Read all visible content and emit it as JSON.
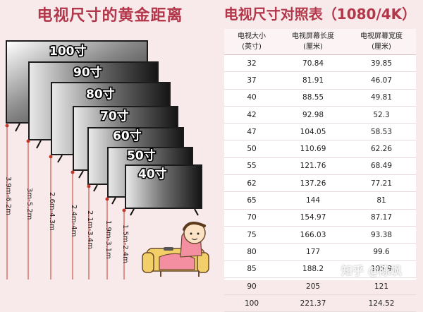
{
  "left_title": "电视尺寸的黄金距离",
  "right_title": "电视尺寸对照表（1080/4K）",
  "tv_sizes": [
    "100寸",
    "90寸",
    "80寸",
    "70寸",
    "60寸",
    "50寸",
    "40寸"
  ],
  "distances": [
    "3.9m-6.2m",
    "3m-5.2m",
    "2.6m-4.3m",
    "2.4m-4m",
    "2.1m-3.4m",
    "1.9m-3.1m",
    "1.5m-2.4m"
  ],
  "table": {
    "headers": [
      "电视大小\n(英寸)",
      "电视屏幕长度\n(厘米)",
      "电视屏幕宽度\n(厘米)"
    ],
    "rows": [
      [
        "32",
        "70.84",
        "39.85"
      ],
      [
        "37",
        "81.91",
        "46.07"
      ],
      [
        "40",
        "88.55",
        "49.81"
      ],
      [
        "42",
        "92.98",
        "52.3"
      ],
      [
        "47",
        "104.05",
        "58.53"
      ],
      [
        "50",
        "110.69",
        "62.26"
      ],
      [
        "55",
        "121.76",
        "68.49"
      ],
      [
        "62",
        "137.26",
        "77.21"
      ],
      [
        "65",
        "144",
        "81"
      ],
      [
        "70",
        "154.97",
        "87.17"
      ],
      [
        "75",
        "166.03",
        "93.38"
      ],
      [
        "80",
        "177",
        "99.6"
      ],
      [
        "85",
        "188.2",
        "105.9"
      ],
      [
        "90",
        "205",
        "121"
      ],
      [
        "100",
        "221.37",
        "124.52"
      ]
    ]
  },
  "watermark": "知乎 @陈飒",
  "colors": {
    "title": "#b3374a",
    "background": "#f8e9ea",
    "tv": "#1c1c1c",
    "distance_line": "#c0392b"
  }
}
